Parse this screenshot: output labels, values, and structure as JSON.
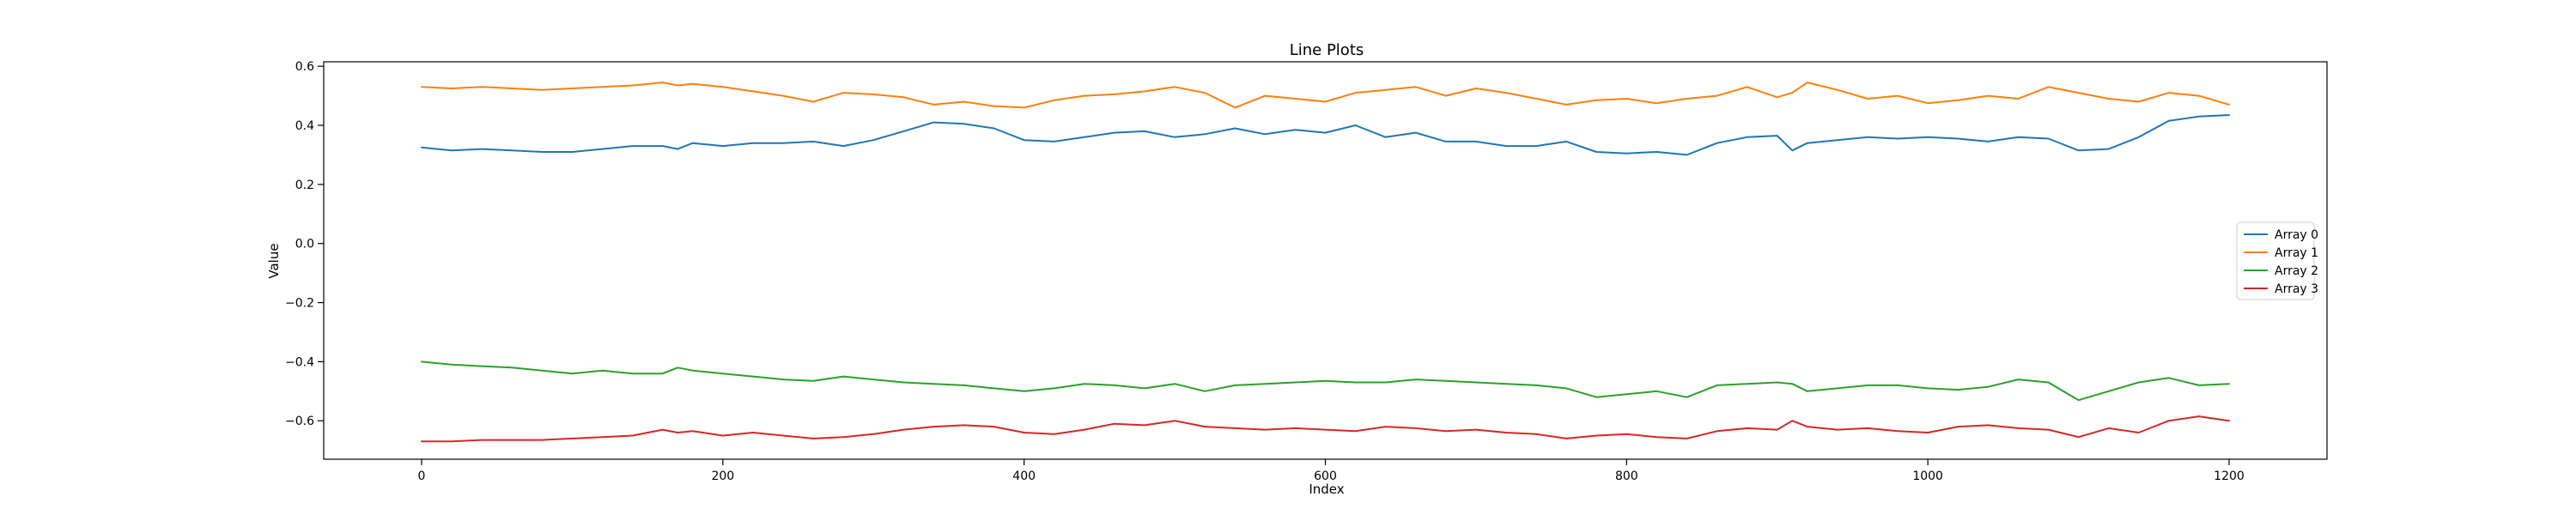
{
  "chart_data": {
    "type": "line",
    "title": "Line Plots",
    "xlabel": "Index",
    "ylabel": "Value",
    "xlim": [
      -65,
      1265
    ],
    "ylim": [
      -0.73,
      0.615
    ],
    "x_ticks": [
      0,
      200,
      400,
      600,
      800,
      1000,
      1200
    ],
    "x_tick_labels": [
      "0",
      "200",
      "400",
      "600",
      "800",
      "1000",
      "1200"
    ],
    "y_ticks": [
      0.6,
      0.4,
      0.2,
      0.0,
      -0.2,
      -0.4,
      -0.6
    ],
    "y_tick_labels": [
      "0.6",
      "0.4",
      "0.2",
      "0.0",
      "−0.2",
      "−0.4",
      "−0.6"
    ],
    "grid": false,
    "legend_position": "center-right",
    "series": [
      {
        "name": "Array 0",
        "color": "#1f77b4",
        "x": [
          0,
          20,
          40,
          60,
          80,
          100,
          120,
          140,
          160,
          170,
          180,
          200,
          220,
          240,
          260,
          280,
          300,
          320,
          340,
          360,
          380,
          400,
          420,
          440,
          460,
          480,
          500,
          520,
          540,
          560,
          580,
          600,
          620,
          640,
          660,
          680,
          700,
          720,
          740,
          760,
          780,
          800,
          820,
          840,
          860,
          880,
          900,
          910,
          920,
          940,
          960,
          980,
          1000,
          1020,
          1040,
          1060,
          1080,
          1100,
          1120,
          1140,
          1160,
          1180,
          1200
        ],
        "y": [
          0.325,
          0.315,
          0.32,
          0.315,
          0.31,
          0.31,
          0.32,
          0.33,
          0.33,
          0.32,
          0.34,
          0.33,
          0.34,
          0.34,
          0.345,
          0.33,
          0.35,
          0.38,
          0.41,
          0.405,
          0.39,
          0.35,
          0.345,
          0.36,
          0.375,
          0.38,
          0.36,
          0.37,
          0.39,
          0.37,
          0.385,
          0.375,
          0.4,
          0.36,
          0.375,
          0.345,
          0.345,
          0.33,
          0.33,
          0.345,
          0.31,
          0.305,
          0.31,
          0.3,
          0.34,
          0.36,
          0.365,
          0.315,
          0.34,
          0.35,
          0.36,
          0.355,
          0.36,
          0.355,
          0.345,
          0.36,
          0.355,
          0.315,
          0.32,
          0.36,
          0.415,
          0.43,
          0.435
        ]
      },
      {
        "name": "Array 1",
        "color": "#ff7f0e",
        "x": [
          0,
          20,
          40,
          60,
          80,
          100,
          120,
          140,
          160,
          170,
          180,
          200,
          220,
          240,
          260,
          280,
          300,
          320,
          340,
          360,
          380,
          400,
          420,
          440,
          460,
          480,
          500,
          520,
          540,
          560,
          580,
          600,
          620,
          640,
          660,
          680,
          700,
          720,
          740,
          760,
          780,
          800,
          820,
          840,
          860,
          880,
          900,
          910,
          920,
          940,
          960,
          980,
          1000,
          1020,
          1040,
          1060,
          1080,
          1100,
          1120,
          1140,
          1160,
          1180,
          1200
        ],
        "y": [
          0.53,
          0.525,
          0.53,
          0.525,
          0.52,
          0.525,
          0.53,
          0.535,
          0.545,
          0.535,
          0.54,
          0.53,
          0.515,
          0.5,
          0.48,
          0.51,
          0.505,
          0.495,
          0.47,
          0.48,
          0.465,
          0.46,
          0.485,
          0.5,
          0.505,
          0.515,
          0.53,
          0.51,
          0.46,
          0.5,
          0.49,
          0.48,
          0.51,
          0.52,
          0.53,
          0.5,
          0.525,
          0.51,
          0.49,
          0.47,
          0.485,
          0.49,
          0.475,
          0.49,
          0.5,
          0.53,
          0.495,
          0.51,
          0.545,
          0.52,
          0.49,
          0.5,
          0.475,
          0.485,
          0.5,
          0.49,
          0.53,
          0.51,
          0.49,
          0.48,
          0.51,
          0.5,
          0.47
        ]
      },
      {
        "name": "Array 2",
        "color": "#2ca02c",
        "x": [
          0,
          20,
          40,
          60,
          80,
          100,
          120,
          140,
          160,
          170,
          180,
          200,
          220,
          240,
          260,
          280,
          300,
          320,
          340,
          360,
          380,
          400,
          420,
          440,
          460,
          480,
          500,
          520,
          540,
          560,
          580,
          600,
          620,
          640,
          660,
          680,
          700,
          720,
          740,
          760,
          780,
          800,
          820,
          840,
          860,
          880,
          900,
          910,
          920,
          940,
          960,
          980,
          1000,
          1020,
          1040,
          1060,
          1080,
          1100,
          1120,
          1140,
          1160,
          1180,
          1200
        ],
        "y": [
          -0.4,
          -0.41,
          -0.415,
          -0.42,
          -0.43,
          -0.44,
          -0.43,
          -0.44,
          -0.44,
          -0.42,
          -0.43,
          -0.44,
          -0.45,
          -0.46,
          -0.465,
          -0.45,
          -0.46,
          -0.47,
          -0.475,
          -0.48,
          -0.49,
          -0.5,
          -0.49,
          -0.475,
          -0.48,
          -0.49,
          -0.475,
          -0.5,
          -0.48,
          -0.475,
          -0.47,
          -0.465,
          -0.47,
          -0.47,
          -0.46,
          -0.465,
          -0.47,
          -0.475,
          -0.48,
          -0.49,
          -0.52,
          -0.51,
          -0.5,
          -0.52,
          -0.48,
          -0.475,
          -0.47,
          -0.475,
          -0.5,
          -0.49,
          -0.48,
          -0.48,
          -0.49,
          -0.495,
          -0.485,
          -0.46,
          -0.47,
          -0.53,
          -0.5,
          -0.47,
          -0.455,
          -0.48,
          -0.475
        ]
      },
      {
        "name": "Array 3",
        "color": "#d62728",
        "x": [
          0,
          20,
          40,
          60,
          80,
          100,
          120,
          140,
          160,
          170,
          180,
          200,
          220,
          240,
          260,
          280,
          300,
          320,
          340,
          360,
          380,
          400,
          420,
          440,
          460,
          480,
          500,
          520,
          540,
          560,
          580,
          600,
          620,
          640,
          660,
          680,
          700,
          720,
          740,
          760,
          780,
          800,
          820,
          840,
          860,
          880,
          900,
          910,
          920,
          940,
          960,
          980,
          1000,
          1020,
          1040,
          1060,
          1080,
          1100,
          1120,
          1140,
          1160,
          1180,
          1200
        ],
        "y": [
          -0.67,
          -0.67,
          -0.665,
          -0.665,
          -0.665,
          -0.66,
          -0.655,
          -0.65,
          -0.63,
          -0.64,
          -0.635,
          -0.65,
          -0.64,
          -0.65,
          -0.66,
          -0.655,
          -0.645,
          -0.63,
          -0.62,
          -0.615,
          -0.62,
          -0.64,
          -0.645,
          -0.63,
          -0.61,
          -0.615,
          -0.6,
          -0.62,
          -0.625,
          -0.63,
          -0.625,
          -0.63,
          -0.635,
          -0.62,
          -0.625,
          -0.635,
          -0.63,
          -0.64,
          -0.645,
          -0.66,
          -0.65,
          -0.645,
          -0.655,
          -0.66,
          -0.635,
          -0.625,
          -0.63,
          -0.6,
          -0.62,
          -0.63,
          -0.625,
          -0.635,
          -0.64,
          -0.62,
          -0.615,
          -0.625,
          -0.63,
          -0.655,
          -0.625,
          -0.64,
          -0.6,
          -0.585,
          -0.6
        ]
      }
    ]
  }
}
